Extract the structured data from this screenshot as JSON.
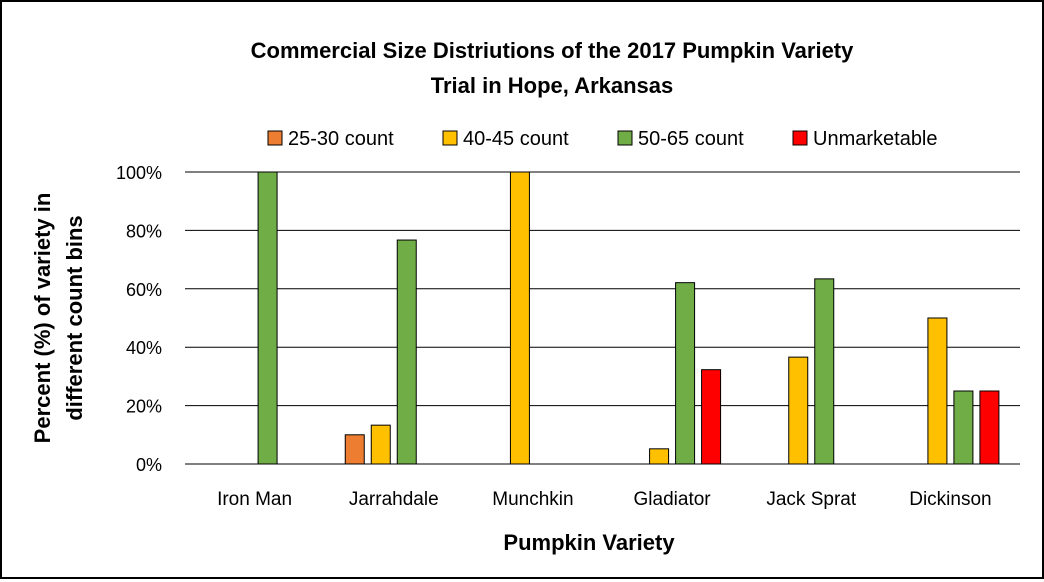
{
  "chart_data": {
    "type": "bar",
    "title_lines": [
      "Commercial Size Distriutions of the 2017 Pumpkin Variety",
      "Trial in Hope, Arkansas"
    ],
    "xlabel": "Pumpkin Variety",
    "ylabel_lines": [
      "Percent (%) of variety in",
      "different count bins"
    ],
    "categories": [
      "Iron Man",
      "Jarrahdale",
      "Munchkin",
      "Gladiator",
      "Jack Sprat",
      "Dickinson"
    ],
    "ylim": [
      0,
      100
    ],
    "yticks": [
      0,
      20,
      40,
      60,
      80,
      100
    ],
    "ytick_labels": [
      "0%",
      "20%",
      "40%",
      "60%",
      "80%",
      "100%"
    ],
    "grid": true,
    "legend_position": "top",
    "series": [
      {
        "name": "25-30 count",
        "color": "#ED7D31",
        "values": [
          0,
          10,
          0,
          0,
          0,
          0
        ]
      },
      {
        "name": "40-45 count",
        "color": "#FFC000",
        "values": [
          0,
          13.3,
          100,
          5.2,
          36.6,
          50
        ]
      },
      {
        "name": "50-65 count",
        "color": "#70AD47",
        "values": [
          100,
          76.7,
          0,
          62.1,
          63.4,
          25
        ]
      },
      {
        "name": "Unmarketable",
        "color": "#FF0000",
        "values": [
          0,
          0,
          0,
          32.3,
          0,
          25
        ]
      }
    ]
  }
}
